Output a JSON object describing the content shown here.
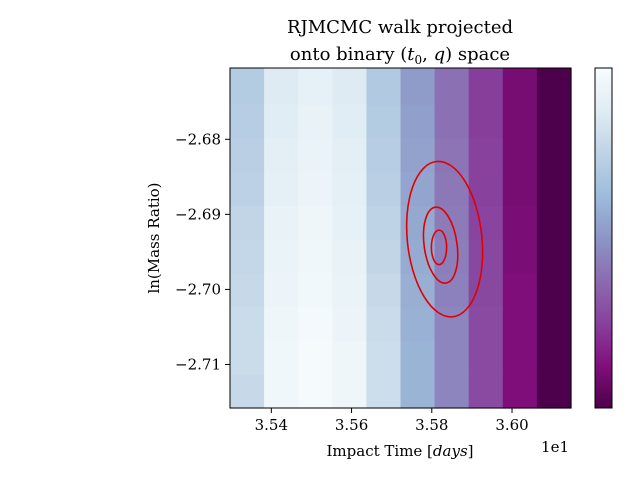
{
  "chart_data": {
    "type": "heatmap",
    "title_line1": "RJMCMC walk projected",
    "title_line2_prefix": "onto binary (",
    "title_line2_t": "t",
    "title_line2_t_sub": "0",
    "title_line2_sep": ", ",
    "title_line2_q": "q",
    "title_line2_suffix": ") space",
    "xlabel_prefix": "Impact Time [",
    "xlabel_unit": "days",
    "xlabel_suffix": "]",
    "ylabel": "ln(Mass Ratio)",
    "x_offset_text": "1e1",
    "xlim": [
      3.5297,
      3.6147
    ],
    "ylim": [
      -2.7158,
      -2.6705
    ],
    "x_ticks": [
      3.54,
      3.56,
      3.58,
      3.6
    ],
    "x_tick_labels": [
      "3.54",
      "3.56",
      "3.58",
      "3.60"
    ],
    "y_ticks": [
      -2.68,
      -2.69,
      -2.7,
      -2.71
    ],
    "y_tick_labels": [
      "−2.68",
      "−2.69",
      "−2.70",
      "−2.71"
    ],
    "colormap": "BuPu_r",
    "colormap_stops": [
      "#4d004b",
      "#810f7c",
      "#88419d",
      "#8c6bb1",
      "#8c96c6",
      "#9ebcda",
      "#bfd3e6",
      "#e0ecf4",
      "#f7fcfd"
    ],
    "heatmap_x_edges": [
      3.5297,
      3.5382,
      3.5467,
      3.5552,
      3.5637,
      3.5722,
      3.5807,
      3.5892,
      3.5977,
      3.6062,
      3.6147
    ],
    "heatmap_y_edges": [
      -2.7158,
      -2.7113,
      -2.7068,
      -2.7023,
      -2.6978,
      -2.6933,
      -2.6888,
      -2.6843,
      -2.6798,
      -2.6753,
      -2.6705
    ],
    "heatmap_rows_bottom_to_top": [
      [
        0.78,
        0.96,
        0.99,
        0.95,
        0.8,
        0.6,
        0.45,
        0.28,
        0.12,
        0.0
      ],
      [
        0.79,
        0.96,
        0.99,
        0.95,
        0.8,
        0.6,
        0.45,
        0.28,
        0.12,
        0.0
      ],
      [
        0.79,
        0.95,
        0.98,
        0.94,
        0.79,
        0.59,
        0.45,
        0.28,
        0.12,
        0.0
      ],
      [
        0.78,
        0.94,
        0.97,
        0.93,
        0.78,
        0.58,
        0.44,
        0.27,
        0.12,
        0.0
      ],
      [
        0.77,
        0.93,
        0.96,
        0.92,
        0.76,
        0.57,
        0.43,
        0.27,
        0.11,
        0.0
      ],
      [
        0.76,
        0.92,
        0.95,
        0.91,
        0.75,
        0.56,
        0.42,
        0.26,
        0.11,
        0.0
      ],
      [
        0.74,
        0.9,
        0.94,
        0.9,
        0.73,
        0.55,
        0.41,
        0.25,
        0.1,
        0.0
      ],
      [
        0.73,
        0.89,
        0.93,
        0.89,
        0.72,
        0.54,
        0.4,
        0.25,
        0.1,
        0.0
      ],
      [
        0.72,
        0.88,
        0.92,
        0.88,
        0.71,
        0.53,
        0.39,
        0.24,
        0.1,
        0.0
      ],
      [
        0.71,
        0.87,
        0.91,
        0.87,
        0.7,
        0.52,
        0.39,
        0.24,
        0.1,
        0.0
      ]
    ],
    "contour_color": "#e00000",
    "contours": [
      {
        "cx": 3.5832,
        "cy": -2.6933,
        "rx": 0.0093,
        "ry": 0.0104,
        "rotation": -6
      },
      {
        "cx": 3.5822,
        "cy": -2.6941,
        "rx": 0.0041,
        "ry": 0.0051,
        "rotation": -8
      },
      {
        "cx": 3.5818,
        "cy": -2.6944,
        "rx": 0.0019,
        "ry": 0.0023,
        "rotation": 0
      }
    ],
    "colorbar": {
      "orientation": "vertical",
      "tick_labels": []
    }
  }
}
